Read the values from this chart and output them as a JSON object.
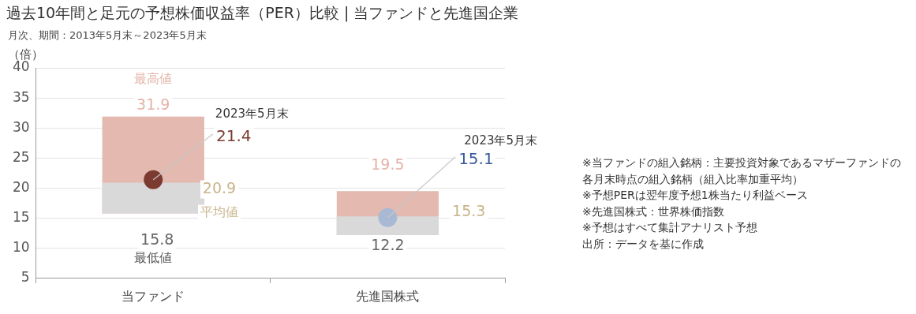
{
  "chart_data": {
    "type": "bar",
    "title": "過去10年間と足元の予想株価収益率（PER）比較 | 当ファンドと先進国企業",
    "subtitle": "月次、期間：2013年5月末～2023年5月末",
    "ylabel": "（倍）",
    "categories": [
      "当ファンド",
      "先進国株式"
    ],
    "series": [
      {
        "color": "#e3b9b0",
        "base": [
          15.8,
          12.2
        ],
        "values": [
          16.1,
          7.3
        ]
      },
      {
        "color": "#d9d9d9",
        "base": [
          15.8,
          12.2
        ],
        "values": [
          5.1,
          3.1
        ]
      },
      {
        "type": "scatter",
        "x": [
          "当ファンド",
          "先進国株式"
        ],
        "values": [
          21.4,
          15.1
        ],
        "colors": [
          "#7b3b30",
          "#a9b9d3"
        ],
        "marker": "circle"
      }
    ],
    "ylim": [
      5,
      40
    ],
    "yticks": [
      5,
      10,
      15,
      20,
      25,
      30,
      35,
      40
    ],
    "grid": "y",
    "legend": false,
    "annotations": [
      {
        "text": "最高値",
        "x": "当ファンド",
        "y": 31.9
      },
      {
        "text": "31.9",
        "x": "当ファンド",
        "y": 31.9
      },
      {
        "text": "15.8",
        "x": "当ファンド",
        "y": 15.8
      },
      {
        "text": "最低値",
        "x": "当ファンド",
        "y": 15.8
      },
      {
        "text": "19.5",
        "x": "先進国株式",
        "y": 19.5
      },
      {
        "text": "12.2",
        "x": "先進国株式",
        "y": 12.2
      },
      {
        "text": "2023年5月末",
        "x": "当ファンド",
        "y": 21.4
      },
      {
        "text": "21.4",
        "x": "当ファンド",
        "y": 21.4
      },
      {
        "text": "15.1",
        "x": "先進国株式",
        "y": 15.1
      },
      "20.9",
      "平均値",
      "15.3",
      "2023年5月末",
      "※当ファンドの組入銘柄：主要投資対象であるマザーファンドの各月末時点の組入銘柄（組入比率加重平均）",
      "※予想PERは翌年度予想1株当たり利益ベース",
      "※先進国株式：世界株価指数",
      "※予想はすべて集計アナリスト予想",
      "出所：データを基に作成"
    ]
  }
}
